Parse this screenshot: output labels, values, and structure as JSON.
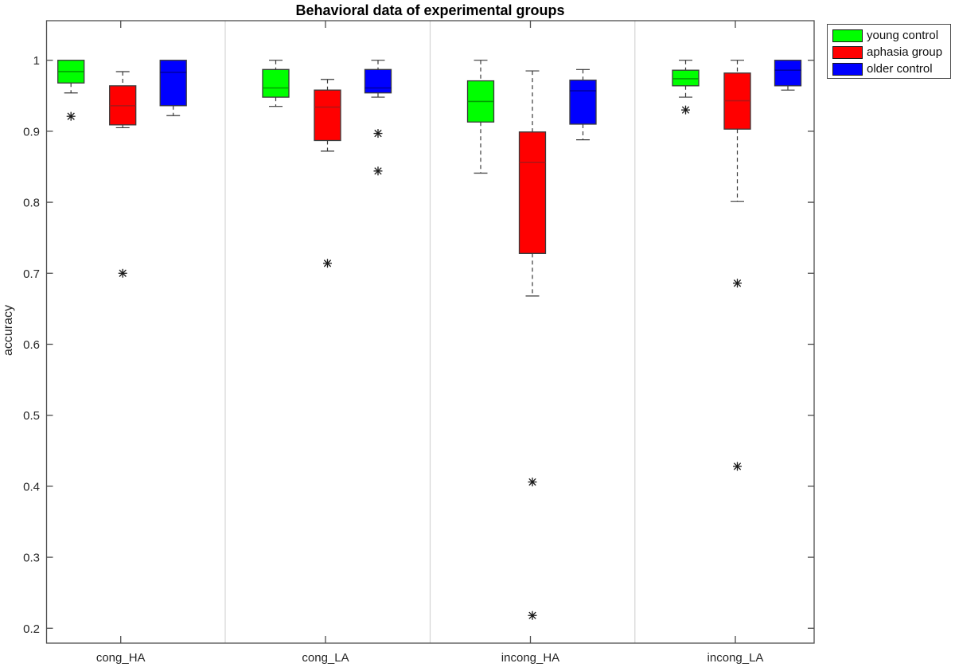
{
  "chart_data": {
    "type": "boxplot",
    "title": "Behavioral data of experimental groups",
    "xlabel": "",
    "ylabel": "accuracy",
    "categories": [
      "cong_HA",
      "cong_LA",
      "incong_HA",
      "incong_LA"
    ],
    "ylim": [
      0.18,
      1.055
    ],
    "yticks": [
      1,
      0.9,
      0.8,
      0.7,
      0.6,
      0.5,
      0.4,
      0.3,
      0.2
    ],
    "grid": "vertical category separators only",
    "legend_position": "outside-top-right",
    "axis_color": "#4d4d4d",
    "tick_label_color": "#262626",
    "separator_color": "#d4d4d4",
    "whisker_color": "#3a3a3a",
    "outlier_marker": "asterisk",
    "series": [
      {
        "name": "young control",
        "color": "#00ff00",
        "median_color": "#00a000",
        "boxes": [
          {
            "category": "cong_HA",
            "whisker_low": 0.954,
            "q1": 0.968,
            "median": 0.984,
            "q3": 1.0,
            "whisker_high": 1.0,
            "outliers": [
              0.921
            ]
          },
          {
            "category": "cong_LA",
            "whisker_low": 0.935,
            "q1": 0.948,
            "median": 0.961,
            "q3": 0.987,
            "whisker_high": 1.0,
            "outliers": []
          },
          {
            "category": "incong_HA",
            "whisker_low": 0.841,
            "q1": 0.913,
            "median": 0.942,
            "q3": 0.971,
            "whisker_high": 1.0,
            "outliers": []
          },
          {
            "category": "incong_LA",
            "whisker_low": 0.948,
            "q1": 0.964,
            "median": 0.974,
            "q3": 0.986,
            "whisker_high": 1.0,
            "outliers": [
              0.93
            ]
          }
        ]
      },
      {
        "name": "aphasia group",
        "color": "#ff0000",
        "median_color": "#b41414",
        "boxes": [
          {
            "category": "cong_HA",
            "whisker_low": 0.905,
            "q1": 0.909,
            "median": 0.936,
            "q3": 0.964,
            "whisker_high": 0.984,
            "outliers": [
              0.7
            ]
          },
          {
            "category": "cong_LA",
            "whisker_low": 0.872,
            "q1": 0.887,
            "median": 0.934,
            "q3": 0.958,
            "whisker_high": 0.973,
            "outliers": [
              0.714
            ]
          },
          {
            "category": "incong_HA",
            "whisker_low": 0.668,
            "q1": 0.728,
            "median": 0.856,
            "q3": 0.899,
            "whisker_high": 0.985,
            "outliers": [
              0.406,
              0.218
            ]
          },
          {
            "category": "incong_LA",
            "whisker_low": 0.801,
            "q1": 0.903,
            "median": 0.943,
            "q3": 0.982,
            "whisker_high": 1.0,
            "outliers": [
              0.686,
              0.428
            ]
          }
        ]
      },
      {
        "name": "older control",
        "color": "#0000ff",
        "median_color": "#0000a0",
        "boxes": [
          {
            "category": "cong_HA",
            "whisker_low": 0.922,
            "q1": 0.936,
            "median": 0.983,
            "q3": 1.0,
            "whisker_high": 1.0,
            "outliers": []
          },
          {
            "category": "cong_LA",
            "whisker_low": 0.948,
            "q1": 0.954,
            "median": 0.961,
            "q3": 0.987,
            "whisker_high": 1.0,
            "outliers": [
              0.897,
              0.844
            ]
          },
          {
            "category": "incong_HA",
            "whisker_low": 0.888,
            "q1": 0.91,
            "median": 0.957,
            "q3": 0.972,
            "whisker_high": 0.987,
            "outliers": []
          },
          {
            "category": "incong_LA",
            "whisker_low": 0.958,
            "q1": 0.964,
            "median": 0.986,
            "q3": 1.0,
            "whisker_high": 1.0,
            "outliers": []
          }
        ]
      }
    ]
  }
}
